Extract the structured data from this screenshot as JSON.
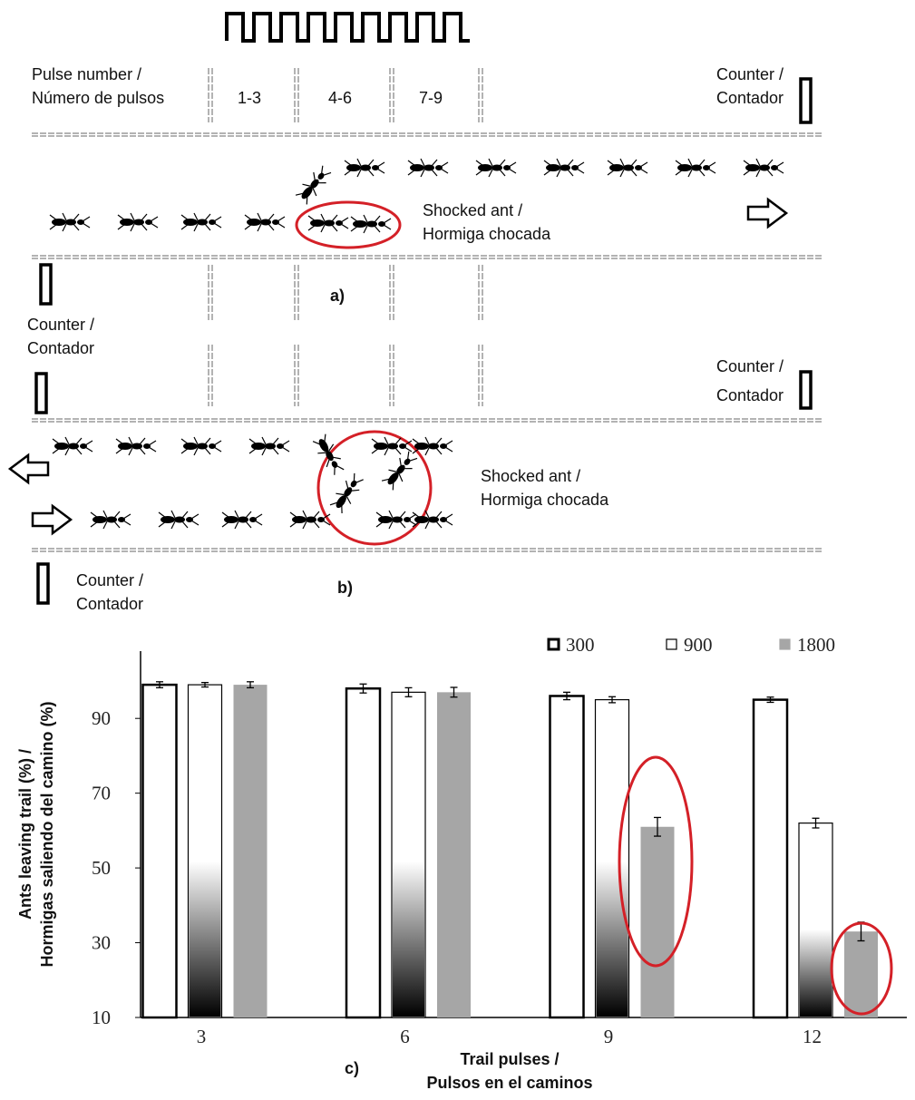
{
  "diagram_a": {
    "pulse_label": [
      "Pulse number /",
      "Número de pulsos"
    ],
    "zones": [
      "1-3",
      "4-6",
      "7-9"
    ],
    "counter_top": [
      "Counter /",
      "Contador"
    ],
    "shocked": [
      "Shocked ant /",
      "Hormiga chocada"
    ],
    "counter_bottom": [
      "Counter /",
      "Contador"
    ],
    "label": "a)"
  },
  "diagram_b": {
    "counter_top": [
      "Counter /",
      "Contador"
    ],
    "shocked": [
      "Shocked ant /",
      "Hormiga chocada"
    ],
    "counter_bottom": [
      "Counter /",
      "Contador"
    ],
    "label": "b)"
  },
  "chart_data": {
    "type": "bar",
    "label": "c)",
    "y_label": [
      "Ants leaving trail (%) /",
      "Hormigas saliendo del camino (%)"
    ],
    "x_label": [
      "Trail pulses /",
      "Pulsos en el caminos"
    ],
    "categories": [
      "3",
      "6",
      "9",
      "12"
    ],
    "series": [
      {
        "name": "300",
        "color": "#ffffff",
        "values": [
          99,
          98,
          96,
          95
        ],
        "errors": [
          0.8,
          1.2,
          1,
          0.7
        ]
      },
      {
        "name": "900",
        "color": "#ffffff",
        "values": [
          99,
          97,
          95,
          62
        ],
        "errors": [
          0.6,
          1.2,
          0.8,
          1.3
        ]
      },
      {
        "name": "1800",
        "color": "#a6a6a6",
        "values": [
          99,
          97,
          61,
          33
        ],
        "errors": [
          0.8,
          1.3,
          2.5,
          2.5
        ]
      }
    ],
    "ylim": [
      10,
      108
    ],
    "yticks": [
      10,
      30,
      50,
      70,
      90
    ]
  }
}
